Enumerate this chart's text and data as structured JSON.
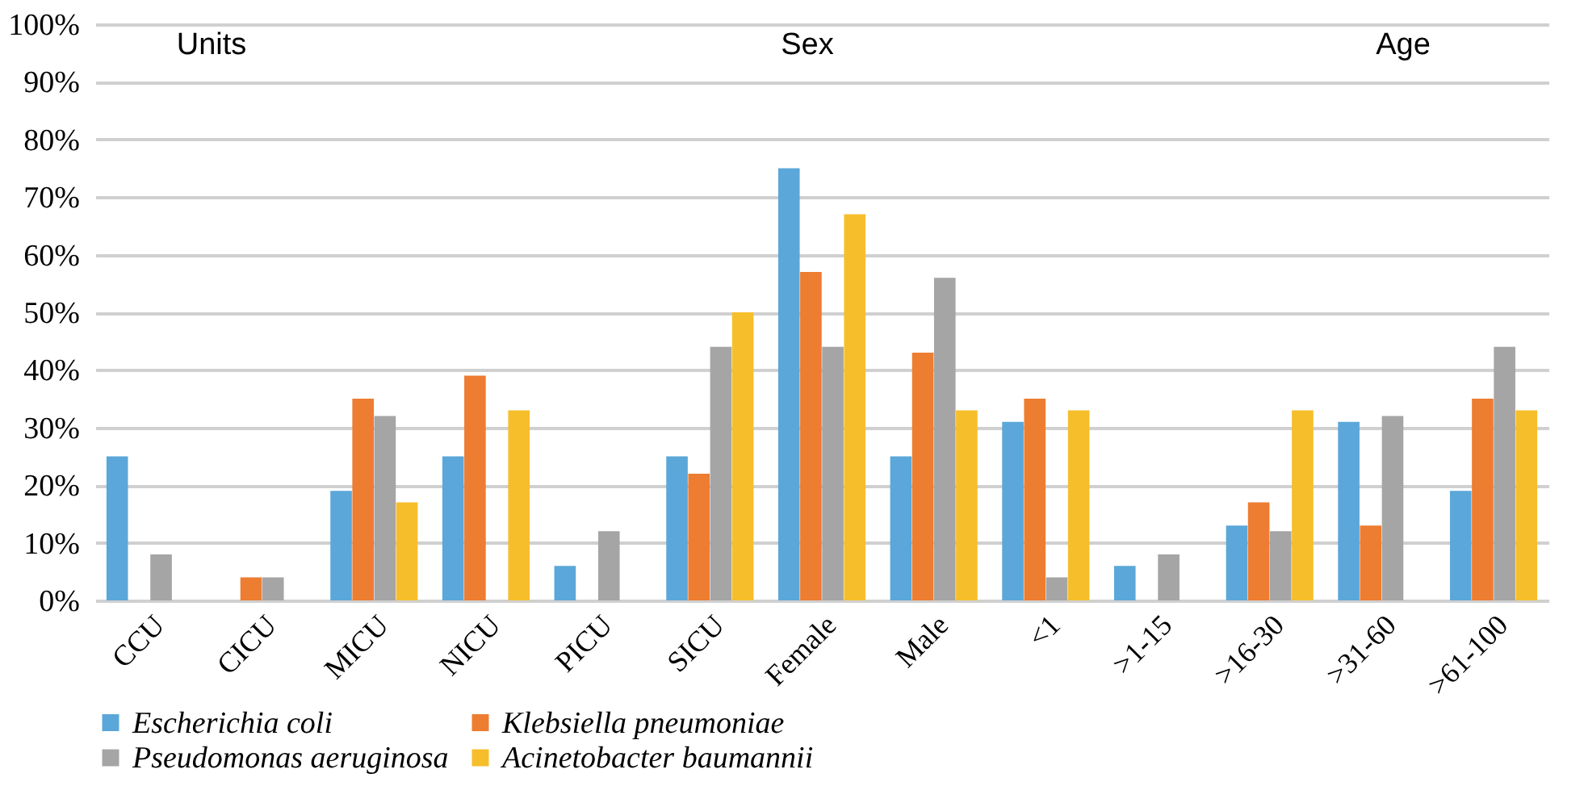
{
  "chart_data": {
    "type": "bar",
    "categories": [
      "CCU",
      "CICU",
      "MICU",
      "NICU",
      "PICU",
      "SICU",
      "Female",
      "Male",
      "<1",
      ">1-15",
      ">16-30",
      ">31-60",
      ">61-100"
    ],
    "series": [
      {
        "name": "Escherichia coli",
        "color": "#5ba7d9",
        "values": [
          25,
          null,
          19,
          25,
          6,
          25,
          75,
          25,
          31,
          6,
          13,
          31,
          19
        ]
      },
      {
        "name": "Klebsiella pneumoniae",
        "color": "#ed7d31",
        "values": [
          null,
          4,
          35,
          39,
          null,
          22,
          57,
          43,
          35,
          null,
          17,
          13,
          35
        ]
      },
      {
        "name": "Pseudomonas aeruginosa",
        "color": "#a5a5a5",
        "values": [
          8,
          4,
          32,
          null,
          12,
          44,
          44,
          56,
          4,
          8,
          12,
          32,
          44
        ]
      },
      {
        "name": "Acinetobacter baumannii",
        "color": "#f7be2b",
        "values": [
          null,
          null,
          17,
          33,
          null,
          50,
          67,
          33,
          33,
          null,
          33,
          null,
          33
        ]
      }
    ],
    "ylim": [
      0,
      100
    ],
    "yticks": [
      {
        "value": 0,
        "label": "0%"
      },
      {
        "value": 10,
        "label": "10%"
      },
      {
        "value": 20,
        "label": "20%"
      },
      {
        "value": 30,
        "label": "30%"
      },
      {
        "value": 40,
        "label": "40%"
      },
      {
        "value": 50,
        "label": "50%"
      },
      {
        "value": 60,
        "label": "60%"
      },
      {
        "value": 70,
        "label": "70%"
      },
      {
        "value": 80,
        "label": "80%"
      },
      {
        "value": 90,
        "label": "90%"
      },
      {
        "value": 100,
        "label": "100%"
      }
    ],
    "annotations": [
      "Units",
      "Sex",
      "Age"
    ],
    "grid": "y",
    "legend": "bottom"
  }
}
